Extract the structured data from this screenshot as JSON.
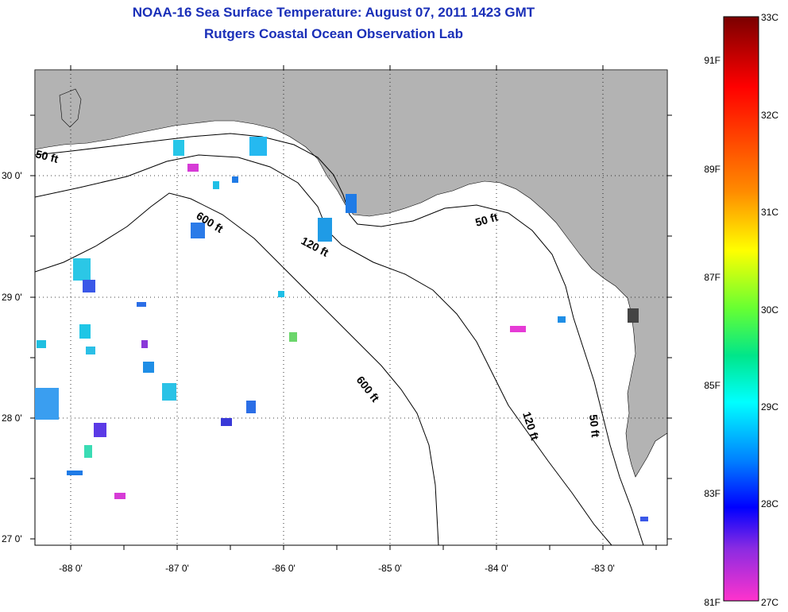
{
  "title": "NOAA-16 Sea Surface Temperature:  August 07, 2011 1423 GMT",
  "subtitle": "Rutgers Coastal Ocean Observation Lab",
  "map": {
    "lat_labels": [
      "30 0'",
      "29 0'",
      "28 0'",
      "27 0'"
    ],
    "lon_labels": [
      "-88 0'",
      "-87 0'",
      "-86 0'",
      "-85 0'",
      "-84 0'",
      "-83 0'"
    ],
    "lat_range": [
      26.95,
      30.85
    ],
    "lon_range": [
      -88.35,
      -82.45
    ],
    "land_color": "#b3b3b3",
    "ocean_color": "#ffffff",
    "isobath_labels": [
      {
        "text": "50 ft"
      },
      {
        "text": "600 ft"
      },
      {
        "text": "120 ft"
      },
      {
        "text": "50 ft"
      },
      {
        "text": "600 ft"
      },
      {
        "text": "120 ft"
      },
      {
        "text": "50 ft"
      }
    ]
  },
  "colorbar": {
    "c_labels": [
      "33C",
      "32C",
      "31C",
      "30C",
      "29C",
      "28C",
      "27C"
    ],
    "f_labels": [
      "91F",
      "89F",
      "87F",
      "85F",
      "83F",
      "81F"
    ],
    "stops": [
      "#7a0000",
      "#ff0000",
      "#ff8c00",
      "#ffff00",
      "#7fff00",
      "#00e68a",
      "#00ffff",
      "#0080ff",
      "#0000ff",
      "#8a2be2",
      "#ff33cc"
    ]
  }
}
